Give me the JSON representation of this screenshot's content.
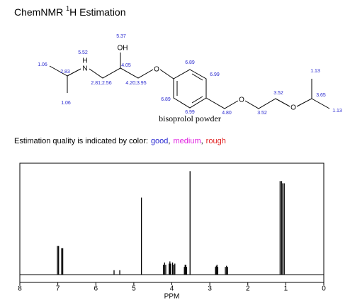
{
  "title": {
    "main": "ChemNMR",
    "superscript": "1",
    "rest": "H Estimation"
  },
  "molecule": {
    "atoms": [
      "H",
      "N",
      "OH",
      "O",
      "O",
      "O"
    ],
    "shifts": [
      "1.06",
      "2.83",
      "1.06",
      "5.52",
      "2.81;2.56",
      "5.37",
      "4.05",
      "4.20;3.95",
      "6.89",
      "6.99",
      "6.89",
      "6.99",
      "4.80",
      "3.52",
      "3.52",
      "3.65",
      "1.13",
      "1.13"
    ],
    "caption": "bisoprolol powder"
  },
  "quality": {
    "text": "Estimation quality is indicated by color:",
    "separator": ",",
    "levels": [
      {
        "name": "good",
        "color": "#2a2ad0"
      },
      {
        "name": "medium",
        "color": "#e020e0"
      },
      {
        "name": "rough",
        "color": "#e02020"
      }
    ]
  },
  "chart_data": {
    "type": "stem",
    "x_label": "PPM",
    "xlim": [
      8,
      0
    ],
    "xticks": [
      8,
      7,
      6,
      5,
      4,
      3,
      2,
      1,
      0
    ],
    "ylim": [
      0,
      1
    ],
    "color": "#000000",
    "x": [
      7.01,
      6.98,
      6.9,
      6.87,
      5.52,
      5.37,
      4.8,
      4.22,
      4.19,
      4.16,
      4.07,
      4.05,
      4.03,
      3.98,
      3.95,
      3.92,
      3.67,
      3.65,
      3.63,
      3.61,
      3.52,
      2.85,
      2.83,
      2.81,
      2.79,
      2.59,
      2.56,
      2.53,
      1.15,
      1.11,
      1.08,
      1.04
    ],
    "values": [
      0.26,
      0.26,
      0.24,
      0.24,
      0.04,
      0.04,
      0.7,
      0.09,
      0.11,
      0.09,
      0.1,
      0.12,
      0.1,
      0.11,
      0.09,
      0.1,
      0.07,
      0.09,
      0.09,
      0.07,
      0.94,
      0.07,
      0.08,
      0.09,
      0.07,
      0.07,
      0.08,
      0.07,
      0.85,
      0.85,
      0.83,
      0.83
    ]
  }
}
